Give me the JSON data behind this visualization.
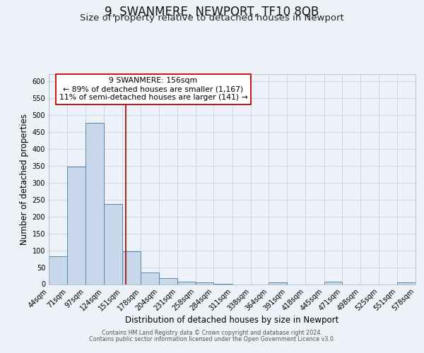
{
  "title": "9, SWANMERE, NEWPORT, TF10 8QB",
  "subtitle": "Size of property relative to detached houses in Newport",
  "xlabel": "Distribution of detached houses by size in Newport",
  "ylabel": "Number of detached properties",
  "bin_edges": [
    44,
    71,
    97,
    124,
    151,
    178,
    204,
    231,
    258,
    284,
    311,
    338,
    364,
    391,
    418,
    445,
    471,
    498,
    525,
    551,
    578
  ],
  "bar_heights": [
    83,
    348,
    476,
    236,
    97,
    35,
    18,
    7,
    5,
    2,
    0,
    0,
    6,
    0,
    0,
    7,
    0,
    0,
    0,
    6
  ],
  "bar_color": "#c8d8ea",
  "bar_edge_color": "#5588aa",
  "property_size": 156,
  "vline_color": "#aa1111",
  "annotation_line1": "9 SWANMERE: 156sqm",
  "annotation_line2": "← 89% of detached houses are smaller (1,167)",
  "annotation_line3": "11% of semi-detached houses are larger (141) →",
  "annotation_box_edgecolor": "#cc1111",
  "annotation_bg_color": "#ffffff",
  "ylim": [
    0,
    620
  ],
  "yticks": [
    0,
    50,
    100,
    150,
    200,
    250,
    300,
    350,
    400,
    450,
    500,
    550,
    600
  ],
  "footer1": "Contains HM Land Registry data © Crown copyright and database right 2024.",
  "footer2": "Contains public sector information licensed under the Open Government Licence v3.0.",
  "title_fontsize": 12,
  "subtitle_fontsize": 9.5,
  "tick_label_fontsize": 7,
  "axis_label_fontsize": 8.5,
  "annotation_fontsize": 7.8,
  "bg_color": "#edf2f8",
  "grid_color": "#c8d2dc",
  "footer_fontsize": 5.8
}
